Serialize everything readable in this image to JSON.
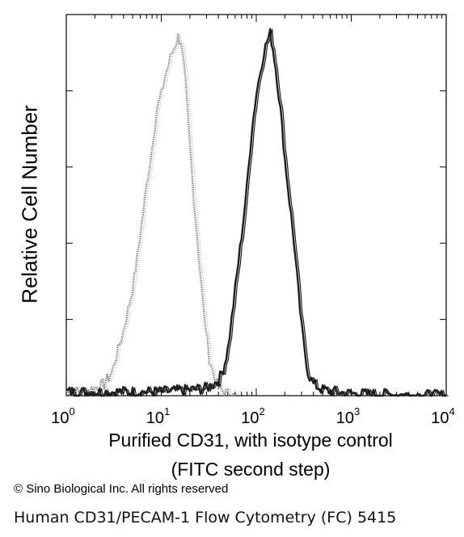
{
  "chart_data": {
    "type": "line",
    "xscale": "log",
    "xlim": [
      1,
      10000
    ],
    "x_ticks": [
      {
        "base": "10",
        "exp": "0"
      },
      {
        "base": "10",
        "exp": "1"
      },
      {
        "base": "10",
        "exp": "2"
      },
      {
        "base": "10",
        "exp": "3"
      },
      {
        "base": "10",
        "exp": "4"
      }
    ],
    "ylim": [
      0,
      1
    ],
    "xlabel_line1": "Purified CD31, with isotype control",
    "xlabel_line2": "(FITC second step)",
    "ylabel": "Relative Cell Number",
    "grid": false,
    "series": [
      {
        "style": "dotted-gray",
        "color": "#8a8a8a",
        "x": [
          1,
          1.5,
          2,
          2.5,
          3,
          3.5,
          4,
          5,
          6,
          7,
          8,
          9,
          10,
          11,
          12,
          13,
          14,
          15,
          16,
          17,
          18,
          20,
          22,
          25,
          28,
          32,
          36,
          40,
          45,
          50,
          60
        ],
        "y": [
          0.01,
          0.01,
          0.02,
          0.03,
          0.06,
          0.12,
          0.17,
          0.28,
          0.42,
          0.55,
          0.65,
          0.75,
          0.79,
          0.84,
          0.87,
          0.9,
          0.92,
          0.94,
          0.93,
          0.88,
          0.82,
          0.66,
          0.52,
          0.36,
          0.22,
          0.1,
          0.05,
          0.02,
          0.01,
          0.005,
          0.0
        ]
      },
      {
        "style": "solid-dark",
        "color": "#1c1c1c",
        "x": [
          1,
          5,
          10,
          20,
          30,
          40,
          45,
          50,
          55,
          60,
          70,
          80,
          90,
          100,
          110,
          120,
          130,
          140,
          150,
          160,
          180,
          200,
          250,
          300,
          350,
          400,
          500,
          700,
          1000,
          10000
        ],
        "y": [
          0.01,
          0.01,
          0.01,
          0.015,
          0.02,
          0.04,
          0.07,
          0.12,
          0.2,
          0.28,
          0.42,
          0.55,
          0.7,
          0.79,
          0.85,
          0.9,
          0.93,
          0.95,
          0.91,
          0.86,
          0.75,
          0.62,
          0.4,
          0.18,
          0.06,
          0.03,
          0.015,
          0.01,
          0.005,
          0.0
        ]
      }
    ]
  },
  "copyright": "© Sino Biological Inc. All rights reserved",
  "caption": "Human CD31/PECAM-1 Flow Cytometry (FC) 5415"
}
